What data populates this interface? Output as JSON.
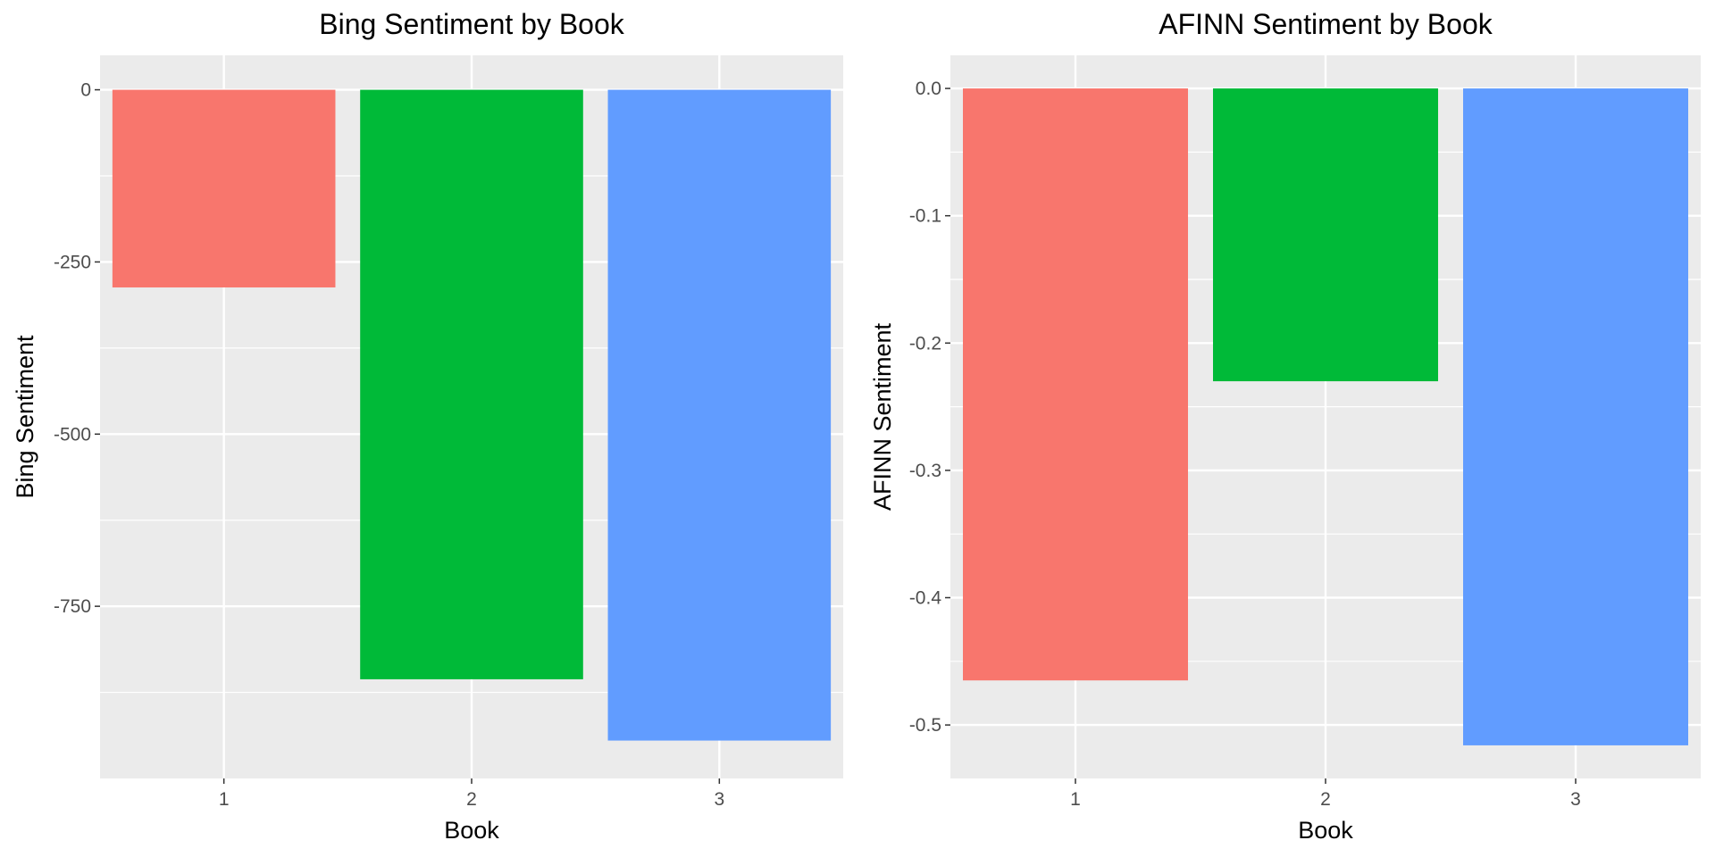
{
  "chart_data": [
    {
      "type": "bar",
      "title": "Bing Sentiment by Book",
      "xlabel": "Book",
      "ylabel": "Bing Sentiment",
      "categories": [
        "1",
        "2",
        "3"
      ],
      "values": [
        -287,
        -856,
        -945
      ],
      "ylim": [
        -1000,
        50
      ],
      "yticks": [
        0,
        -250,
        -500,
        -750
      ],
      "ytick_labels": [
        "0",
        "-250",
        "-500",
        "-750"
      ],
      "colors": [
        "#F8766D",
        "#00BA38",
        "#619CFF"
      ],
      "grid": true,
      "legend": "none"
    },
    {
      "type": "bar",
      "title": "AFINN Sentiment by Book",
      "xlabel": "Book",
      "ylabel": "AFINN Sentiment",
      "categories": [
        "1",
        "2",
        "3"
      ],
      "values": [
        -0.465,
        -0.23,
        -0.516
      ],
      "ylim": [
        -0.542,
        0.026
      ],
      "yticks": [
        0,
        -0.1,
        -0.2,
        -0.3,
        -0.4,
        -0.5
      ],
      "ytick_labels": [
        "0.0",
        "-0.1",
        "-0.2",
        "-0.3",
        "-0.4",
        "-0.5"
      ],
      "colors": [
        "#F8766D",
        "#00BA38",
        "#619CFF"
      ],
      "grid": true,
      "legend": "none"
    }
  ]
}
